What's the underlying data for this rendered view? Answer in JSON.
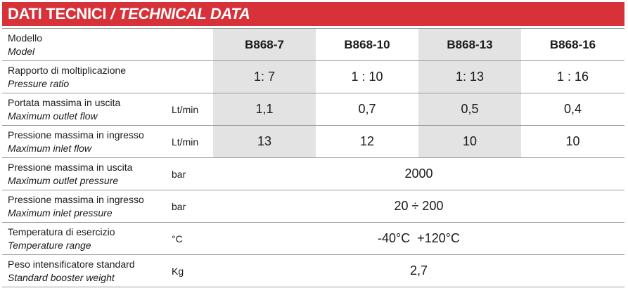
{
  "header": {
    "title_it": "DATI TECNICI",
    "separator": "/",
    "title_en": "TECHNICAL DATA"
  },
  "colors": {
    "banner": "#d7323a",
    "shade": "#e3e3e3"
  },
  "rows": [
    {
      "label_it": "Modello",
      "label_en": "Model",
      "unit": "",
      "values": [
        "B868-7",
        "B868-10",
        "B868-13",
        "B868-16"
      ]
    },
    {
      "label_it": "Rapporto di moltiplicazione",
      "label_en": "Pressure ratio",
      "unit": "",
      "values": [
        "1: 7",
        "1 : 10",
        "1: 13",
        "1 : 16"
      ]
    },
    {
      "label_it": "Portata massima in uscita",
      "label_en": "Maximum outlet flow",
      "unit": "Lt/min",
      "values": [
        "1,1",
        "0,7",
        "0,5",
        "0,4"
      ]
    },
    {
      "label_it": "Pressione massima in ingresso",
      "label_en": "Maximum inlet flow",
      "unit": "Lt/min",
      "values": [
        "13",
        "12",
        "10",
        "10"
      ]
    },
    {
      "label_it": "Pressione massima in uscita",
      "label_en": "Maximum outlet pressure",
      "unit": "bar",
      "value": "2000"
    },
    {
      "label_it": "Pressione massima in ingresso",
      "label_en": "Maximum inlet pressure",
      "unit": "bar",
      "value": "20 ÷ 200"
    },
    {
      "label_it": "Temperatura di esercizio",
      "label_en": "Temperature range",
      "unit": "°C",
      "value": "-40°C  +120°C"
    },
    {
      "label_it": "Peso intensificatore standard",
      "label_en": "Standard booster weight",
      "unit": "Kg",
      "value": "2,7"
    }
  ]
}
